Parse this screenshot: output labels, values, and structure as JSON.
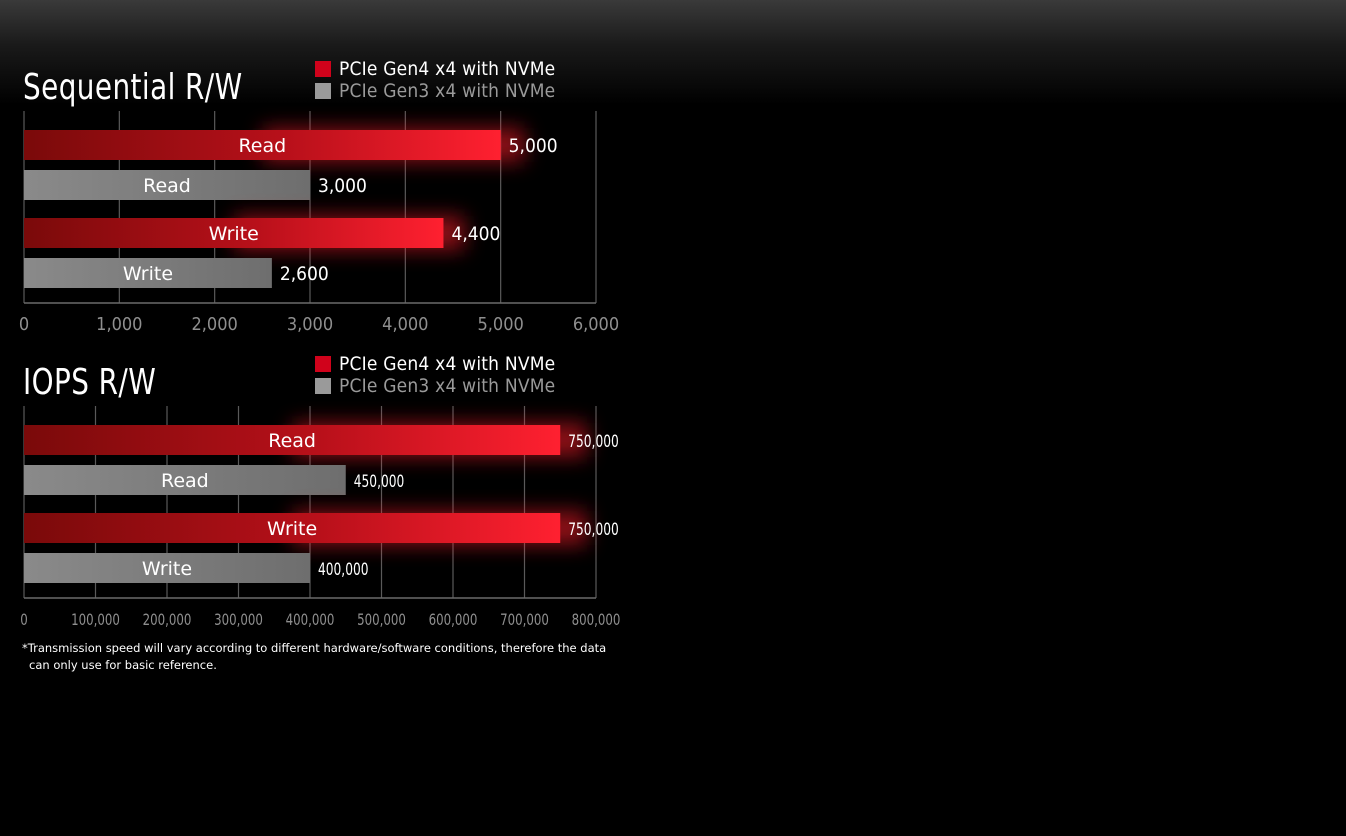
{
  "chart_data": [
    {
      "type": "bar",
      "title": "Sequential R/W",
      "orientation": "horizontal",
      "xlim": [
        0,
        6000
      ],
      "ticks": [
        "0",
        "1,000",
        "2,000",
        "3,000",
        "4,000",
        "5,000",
        "6,000"
      ],
      "grid": true,
      "legend": [
        {
          "name": "PCIe Gen4 x4 with NVMe",
          "color": "#d0021b"
        },
        {
          "name": "PCIe Gen3 x4 with NVMe",
          "color": "#9a9a9a"
        }
      ],
      "bars": [
        {
          "label": "Read",
          "series": "PCIe Gen4 x4 with NVMe",
          "value": 5000,
          "value_label": "5,000"
        },
        {
          "label": "Read",
          "series": "PCIe Gen3 x4 with NVMe",
          "value": 3000,
          "value_label": "3,000"
        },
        {
          "label": "Write",
          "series": "PCIe Gen4 x4 with NVMe",
          "value": 4400,
          "value_label": "4,400"
        },
        {
          "label": "Write",
          "series": "PCIe Gen3 x4 with NVMe",
          "value": 2600,
          "value_label": "2,600"
        }
      ]
    },
    {
      "type": "bar",
      "title": "IOPS R/W",
      "orientation": "horizontal",
      "xlim": [
        0,
        800000
      ],
      "ticks": [
        "0",
        "100,000",
        "200,000",
        "300,000",
        "400,000",
        "500,000",
        "600,000",
        "700,000",
        "800,000"
      ],
      "grid": true,
      "legend": [
        {
          "name": "PCIe Gen4 x4 with NVMe",
          "color": "#d0021b"
        },
        {
          "name": "PCIe Gen3 x4 with NVMe",
          "color": "#9a9a9a"
        }
      ],
      "bars": [
        {
          "label": "Read",
          "series": "PCIe Gen4 x4 with NVMe",
          "value": 750000,
          "value_label": "750,000"
        },
        {
          "label": "Read",
          "series": "PCIe Gen3 x4 with NVMe",
          "value": 450000,
          "value_label": "450,000"
        },
        {
          "label": "Write",
          "series": "PCIe Gen4 x4 with NVMe",
          "value": 750000,
          "value_label": "750,000"
        },
        {
          "label": "Write",
          "series": "PCIe Gen3 x4 with NVMe",
          "value": 400000,
          "value_label": "400,000"
        }
      ]
    }
  ],
  "footnote": {
    "line1": "*Transmission speed will vary according to different hardware/software conditions, therefore the data",
    "line2": "can only use for basic reference."
  }
}
